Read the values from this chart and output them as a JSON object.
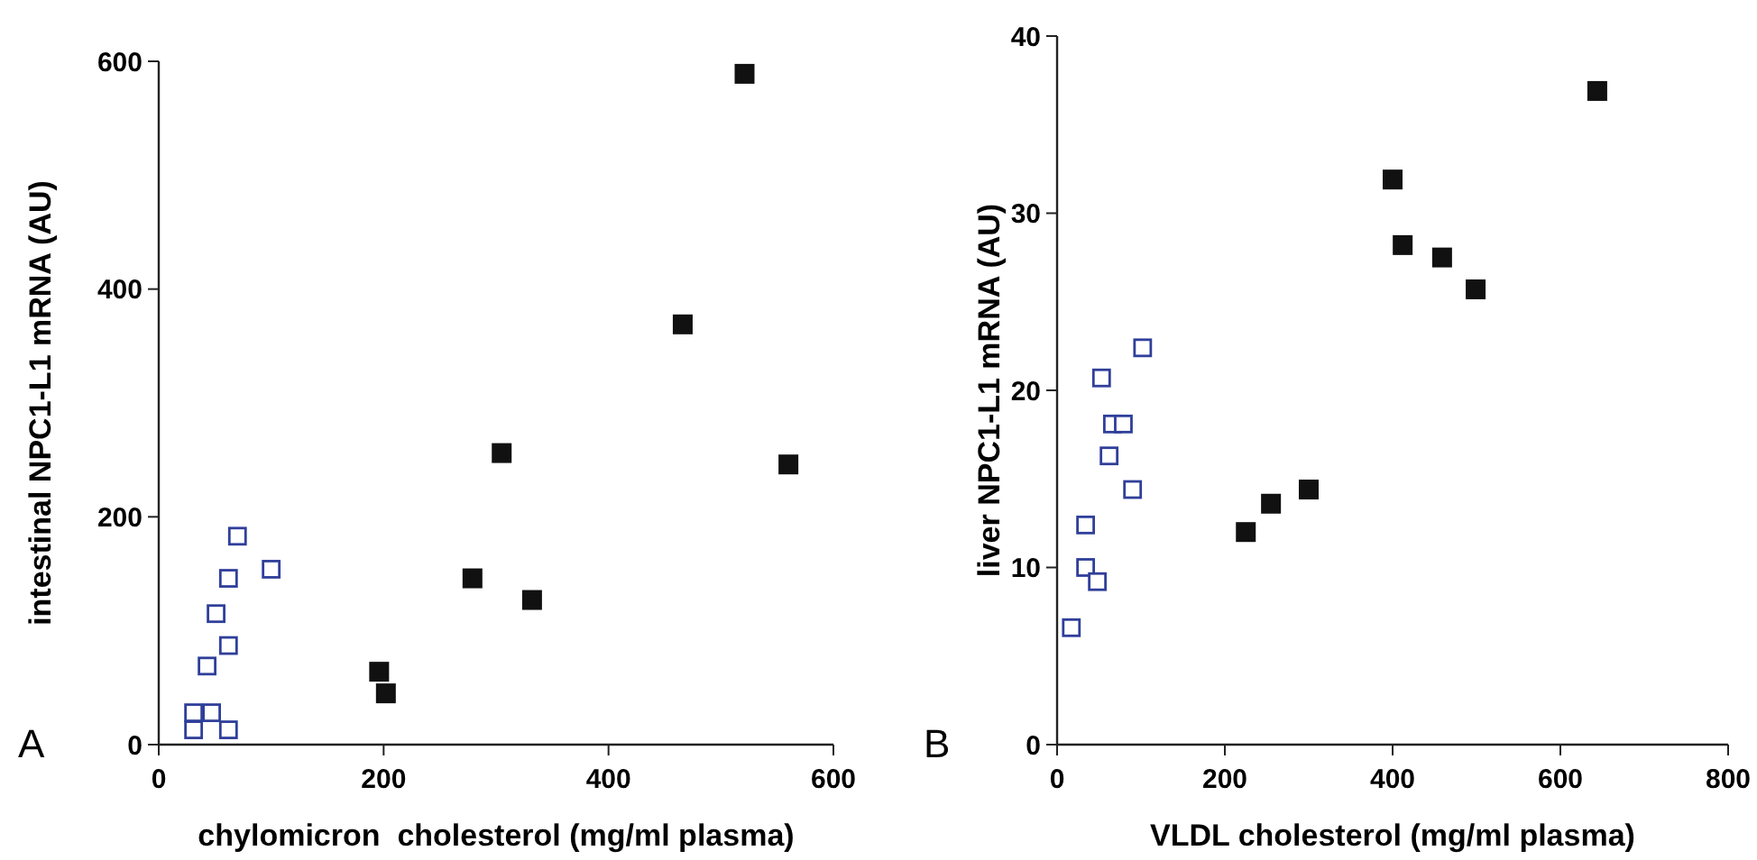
{
  "chart_data": [
    {
      "type": "scatter",
      "xlabel": "chylomicron  cholesterol (mg/ml plasma)",
      "ylabel": "intestinal NPC1-L1 mRNA (AU)",
      "xlim": [
        0,
        600
      ],
      "xticks": [
        0,
        200,
        400,
        600
      ],
      "ylim": [
        0,
        600
      ],
      "yticks": [
        0,
        200,
        400,
        600
      ],
      "grid": false,
      "annotations": [
        "A"
      ],
      "series": [
        {
          "color": "#2f3f9a",
          "marker": "square-open",
          "x": [
            70,
            100,
            62,
            51,
            62,
            43,
            31,
            47,
            31,
            62
          ],
          "values": [
            183,
            154,
            146,
            115,
            87,
            69,
            28,
            28,
            13,
            13
          ]
        },
        {
          "color": "#111111",
          "marker": "square",
          "x": [
            521,
            466,
            305,
            560,
            279,
            332,
            196,
            202
          ],
          "values": [
            589,
            369,
            256,
            246,
            146,
            127,
            64,
            45
          ]
        }
      ]
    },
    {
      "type": "scatter",
      "xlabel": "VLDL cholesterol (mg/ml plasma)",
      "ylabel": "liver NPC1-L1 mRNA (AU)",
      "xlim": [
        0,
        800
      ],
      "xticks": [
        0,
        200,
        400,
        600,
        800
      ],
      "ylim": [
        0,
        40
      ],
      "yticks": [
        0,
        10,
        20,
        30,
        40
      ],
      "grid": false,
      "annotations": [
        "B"
      ],
      "series": [
        {
          "color": "#2f3f9a",
          "marker": "square-open",
          "x": [
            102,
            53,
            66,
            79,
            62,
            90,
            34,
            34,
            48,
            17
          ],
          "values": [
            22.4,
            20.7,
            18.1,
            18.1,
            16.3,
            14.4,
            12.4,
            10.0,
            9.2,
            6.6
          ]
        },
        {
          "color": "#111111",
          "marker": "square",
          "x": [
            644,
            400,
            412,
            459,
            499,
            300,
            255,
            225
          ],
          "values": [
            36.9,
            31.9,
            28.2,
            27.5,
            25.7,
            14.4,
            13.6,
            12.0
          ]
        }
      ]
    }
  ]
}
